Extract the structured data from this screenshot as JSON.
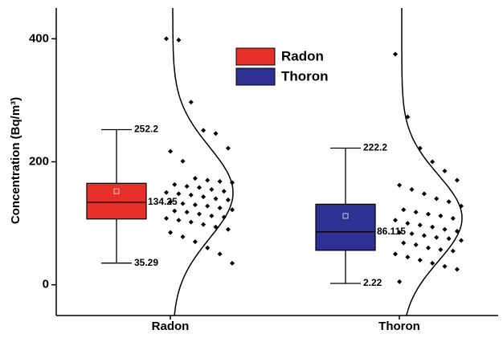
{
  "chart_data": {
    "type": "box",
    "y_label": "Concentration (Bq/m³)",
    "categories": [
      "Radon",
      "Thoron"
    ],
    "ylim": [
      -50,
      450
    ],
    "yticks": [
      0,
      200,
      400
    ],
    "series": [
      {
        "name": "Radon",
        "color": "#e8302a",
        "box": {
          "min": 35.29,
          "q1": 107,
          "median": 134.25,
          "q3": 165,
          "max": 252.2,
          "mean": 152
        },
        "points": [
          400,
          398,
          297,
          251,
          246,
          222,
          217,
          201,
          173,
          170,
          168,
          166,
          163,
          160,
          158,
          155,
          152,
          150,
          148,
          146,
          143,
          140,
          138,
          135,
          132,
          130,
          128,
          125,
          122,
          120,
          118,
          115,
          112,
          110,
          108,
          105,
          102,
          98,
          94,
          90,
          85,
          78,
          70,
          60,
          50,
          35
        ]
      },
      {
        "name": "Thoron",
        "color": "#2e3192",
        "box": {
          "min": 2.22,
          "q1": 56,
          "median": 86.115,
          "q3": 131,
          "max": 222.2,
          "mean": 112
        },
        "points": [
          375,
          273,
          222,
          200,
          185,
          170,
          162,
          155,
          148,
          140,
          135,
          128,
          122,
          118,
          115,
          112,
          108,
          105,
          100,
          97,
          94,
          90,
          87,
          85,
          83,
          80,
          77,
          75,
          72,
          68,
          65,
          60,
          57,
          55,
          50,
          45,
          40,
          35,
          30,
          25,
          5
        ]
      }
    ]
  }
}
